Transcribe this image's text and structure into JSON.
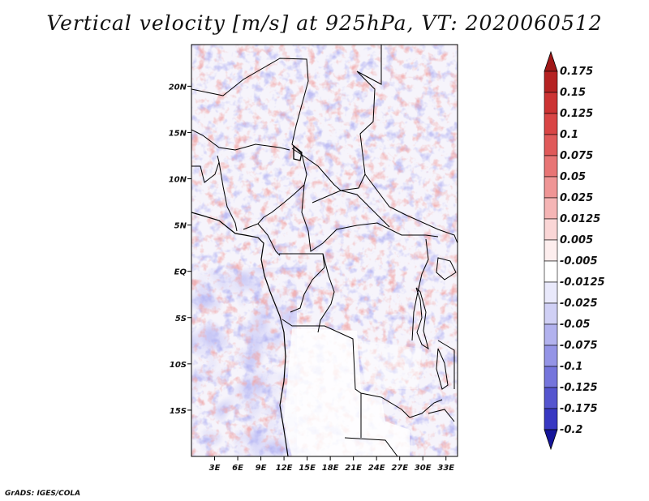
{
  "title": "Vertical velocity [m/s] at 925hPa, VT: 2020060512",
  "footer": "GrADS: IGES/COLA",
  "map": {
    "lat_ticks": [
      "20N",
      "15N",
      "10N",
      "5N",
      "EQ",
      "5S",
      "10S",
      "15S"
    ],
    "lat_values": [
      20,
      15,
      10,
      5,
      0,
      -5,
      -10,
      -15
    ],
    "lon_ticks": [
      "3E",
      "6E",
      "9E",
      "12E",
      "15E",
      "18E",
      "21E",
      "24E",
      "27E",
      "30E",
      "33E"
    ],
    "lon_values": [
      3,
      6,
      9,
      12,
      15,
      18,
      21,
      24,
      27,
      30,
      33
    ],
    "lon_range": [
      0,
      34.5
    ],
    "lat_range": [
      -20,
      24.5
    ]
  },
  "colorbar": {
    "labels": [
      "0.175",
      "0.15",
      "0.125",
      "0.1",
      "0.075",
      "0.05",
      "0.025",
      "0.0125",
      "0.005",
      "-0.005",
      "-0.0125",
      "-0.025",
      "-0.05",
      "-0.075",
      "-0.1",
      "-0.125",
      "-0.175",
      "-0.2"
    ],
    "colors": {
      "top_arrow": "#a01818",
      "bins": [
        "#b52222",
        "#cc3333",
        "#d94545",
        "#e05a5a",
        "#e87575",
        "#ef9595",
        "#f5b5b5",
        "#fad6d6",
        "#fdeeee",
        "#ffffff",
        "#e9e9fb",
        "#d0d0f5",
        "#b2b2ee",
        "#9494e6",
        "#7575dc",
        "#5555cf",
        "#3838c2",
        "#2121b0"
      ],
      "bottom_arrow": "#15159a"
    }
  },
  "colors": {
    "positive": "#e06060",
    "negative": "#6a6ae0",
    "border": "#000000"
  }
}
